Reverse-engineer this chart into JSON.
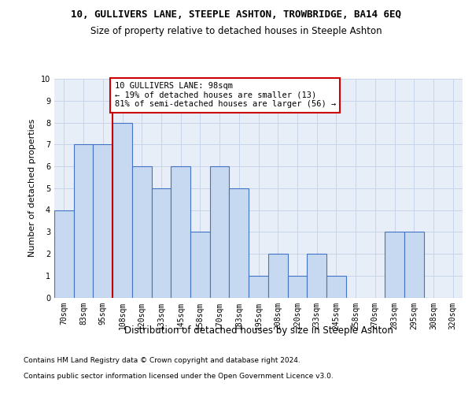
{
  "title1": "10, GULLIVERS LANE, STEEPLE ASHTON, TROWBRIDGE, BA14 6EQ",
  "title2": "Size of property relative to detached houses in Steeple Ashton",
  "xlabel": "Distribution of detached houses by size in Steeple Ashton",
  "ylabel": "Number of detached properties",
  "footnote1": "Contains HM Land Registry data © Crown copyright and database right 2024.",
  "footnote2": "Contains public sector information licensed under the Open Government Licence v3.0.",
  "categories": [
    "70sqm",
    "83sqm",
    "95sqm",
    "108sqm",
    "120sqm",
    "133sqm",
    "145sqm",
    "158sqm",
    "170sqm",
    "183sqm",
    "195sqm",
    "208sqm",
    "220sqm",
    "233sqm",
    "245sqm",
    "258sqm",
    "270sqm",
    "283sqm",
    "295sqm",
    "308sqm",
    "320sqm"
  ],
  "values": [
    4,
    7,
    7,
    8,
    6,
    5,
    6,
    3,
    6,
    5,
    1,
    2,
    1,
    2,
    1,
    0,
    0,
    3,
    3,
    0,
    0
  ],
  "bar_color": "#c6d9f0",
  "bar_edge_color": "#4472c4",
  "vline_color": "#cc0000",
  "vline_index": 2,
  "annotation_line1": "10 GULLIVERS LANE: 98sqm",
  "annotation_line2": "← 19% of detached houses are smaller (13)",
  "annotation_line3": "81% of semi-detached houses are larger (56) →",
  "annotation_box_facecolor": "#ffffff",
  "annotation_box_edgecolor": "#cc0000",
  "ylim": [
    0,
    10
  ],
  "yticks": [
    0,
    1,
    2,
    3,
    4,
    5,
    6,
    7,
    8,
    9,
    10
  ],
  "grid_color": "#c8d4e8",
  "background_color": "#ffffff",
  "plot_bg_color": "#e8eef8"
}
